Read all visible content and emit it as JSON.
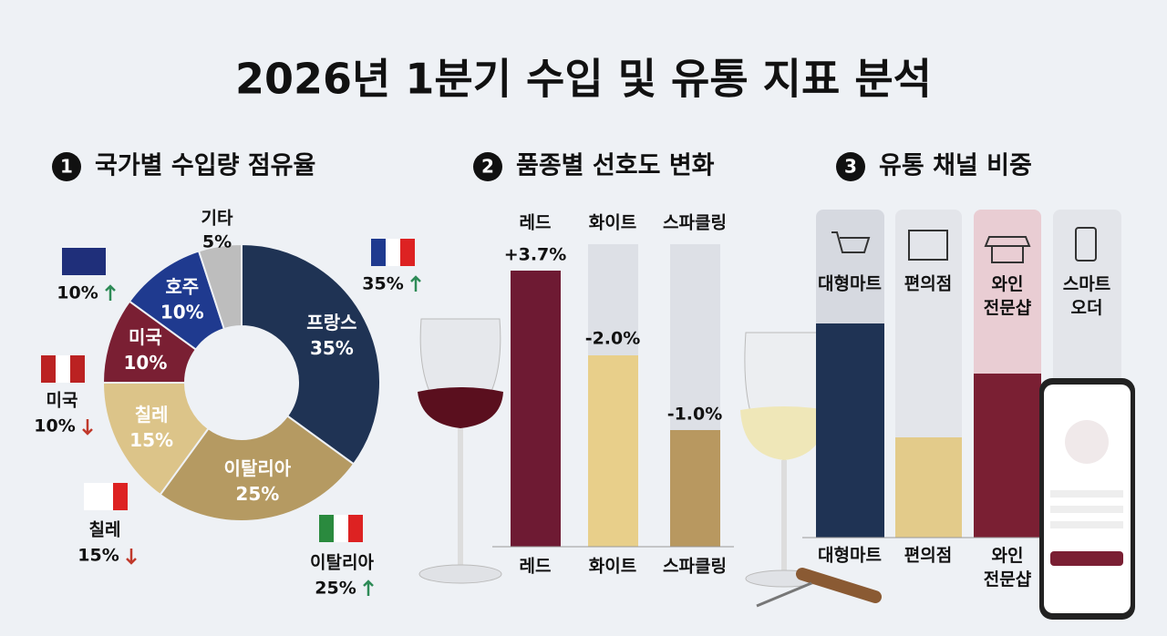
{
  "title": "2026년 1분기 수입 및 유통 지표 분석",
  "sections": [
    {
      "number": "1",
      "heading": "국가별 수입량 점유율"
    },
    {
      "number": "2",
      "heading": "품종별 선호도 변화"
    },
    {
      "number": "3",
      "heading": "유통 채널 비중"
    }
  ],
  "chart_data": {
    "type": "pie",
    "donut": true,
    "categories": [
      "프랑스",
      "이탈리아",
      "칠레",
      "미국",
      "호주",
      "기타"
    ],
    "values": [
      35,
      25,
      15,
      10,
      10,
      5
    ],
    "value_labels": [
      "35%",
      "25%",
      "15%",
      "10%",
      "10%",
      "5%"
    ],
    "colors": [
      "#1f3354",
      "#b59a62",
      "#dcc489",
      "#7a1f33",
      "#1f3a8f",
      "#bdbdbd"
    ],
    "trends": [
      "up",
      "up",
      "down",
      "down",
      "up",
      null
    ]
  },
  "varieties": {
    "names": [
      "레드",
      "화이트",
      "스파클링"
    ],
    "changes": [
      "+3.7%",
      "-2.0%",
      "-1.0%"
    ]
  },
  "channels": {
    "names": [
      "대형마트",
      "편의점",
      "와인 전문샵",
      "스마트 오더"
    ]
  }
}
